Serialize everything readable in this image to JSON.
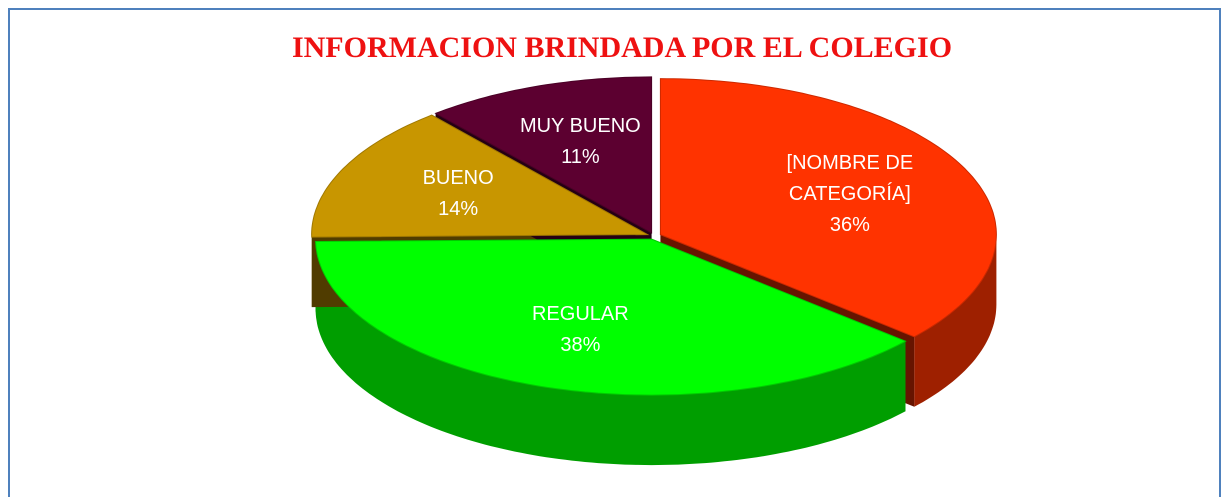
{
  "chart_data": {
    "type": "pie3d",
    "title": "INFORMACION BRINDADA POR EL COLEGIO",
    "categories": [
      "[NOMBRE DE CATEGORÍA]",
      "REGULAR",
      "BUENO",
      "MUY BUENO"
    ],
    "values": [
      36,
      38,
      14,
      11
    ],
    "value_labels": [
      "36%",
      "38%",
      "14%",
      "11%"
    ],
    "colors": [
      "#ff3300",
      "#00ff00",
      "#c89600",
      "#5c0030"
    ]
  }
}
